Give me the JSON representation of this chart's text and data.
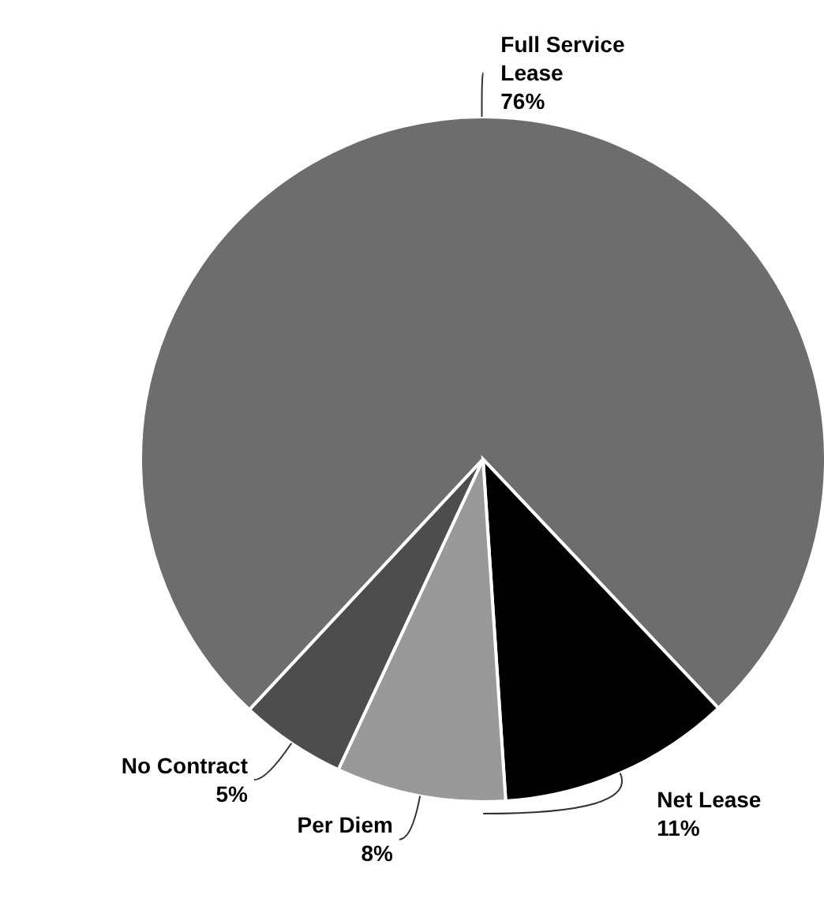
{
  "chart_data": {
    "type": "pie",
    "categories": [
      "Full Service Lease",
      "Net Lease",
      "Per Diem",
      "No Contract"
    ],
    "values": [
      76,
      11,
      8,
      5
    ],
    "value_labels": [
      "76%",
      "11%",
      "8%",
      "5%"
    ],
    "colors": [
      "#6d6d6d",
      "#000000",
      "#999999",
      "#4d4d4d"
    ]
  }
}
